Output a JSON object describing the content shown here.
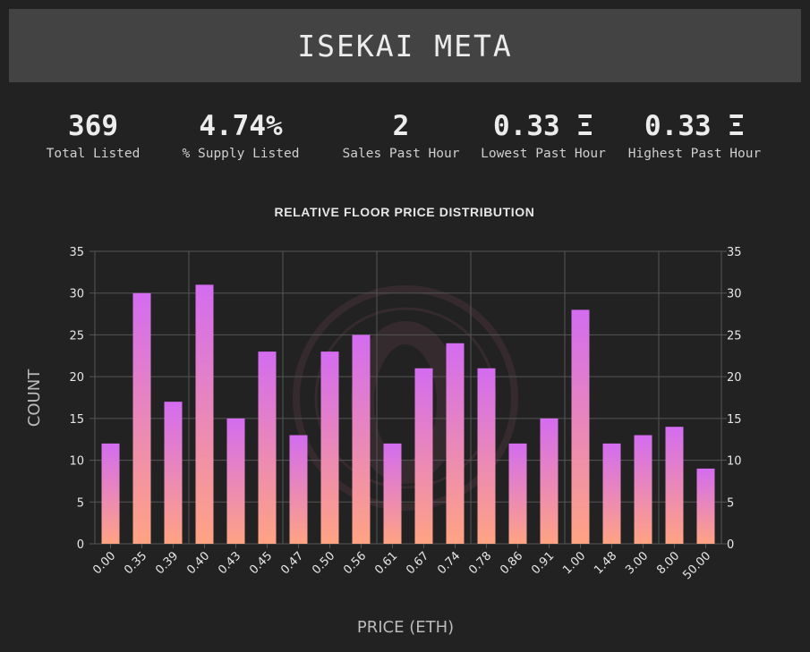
{
  "header": {
    "title": "ISEKAI META"
  },
  "stats": [
    {
      "value": "369",
      "label": "Total Listed"
    },
    {
      "value": "4.74%",
      "label": "% Supply Listed"
    },
    {
      "value": "2",
      "label": "Sales Past Hour"
    },
    {
      "value": "0.33 Ξ",
      "label": "Lowest Past Hour"
    },
    {
      "value": "0.33 Ξ",
      "label": "Highest Past Hour"
    }
  ],
  "chart_data": {
    "type": "bar",
    "title": "RELATIVE FLOOR PRICE DISTRIBUTION",
    "xlabel": "PRICE (ETH)",
    "ylabel": "COUNT",
    "categories": [
      "0.00",
      "0.35",
      "0.39",
      "0.40",
      "0.43",
      "0.45",
      "0.47",
      "0.50",
      "0.56",
      "0.61",
      "0.67",
      "0.74",
      "0.78",
      "0.86",
      "0.91",
      "1.00",
      "1.48",
      "3.00",
      "8.00",
      "50.00"
    ],
    "values": [
      12,
      30,
      17,
      31,
      15,
      23,
      13,
      23,
      25,
      12,
      21,
      24,
      21,
      12,
      15,
      28,
      12,
      13,
      14,
      9
    ],
    "ylim": [
      0,
      35
    ],
    "yticks": [
      0,
      5,
      10,
      15,
      20,
      25,
      30,
      35
    ],
    "grid": true,
    "y_axis_mirrored_right": true,
    "bar_gradient": {
      "top": "#d36cf0",
      "bottom": "#ffa383"
    },
    "colors": {
      "background": "#222222",
      "grid": "#555555",
      "axis_text": "#e6e6e6",
      "label_text": "#bbbbbb"
    }
  }
}
